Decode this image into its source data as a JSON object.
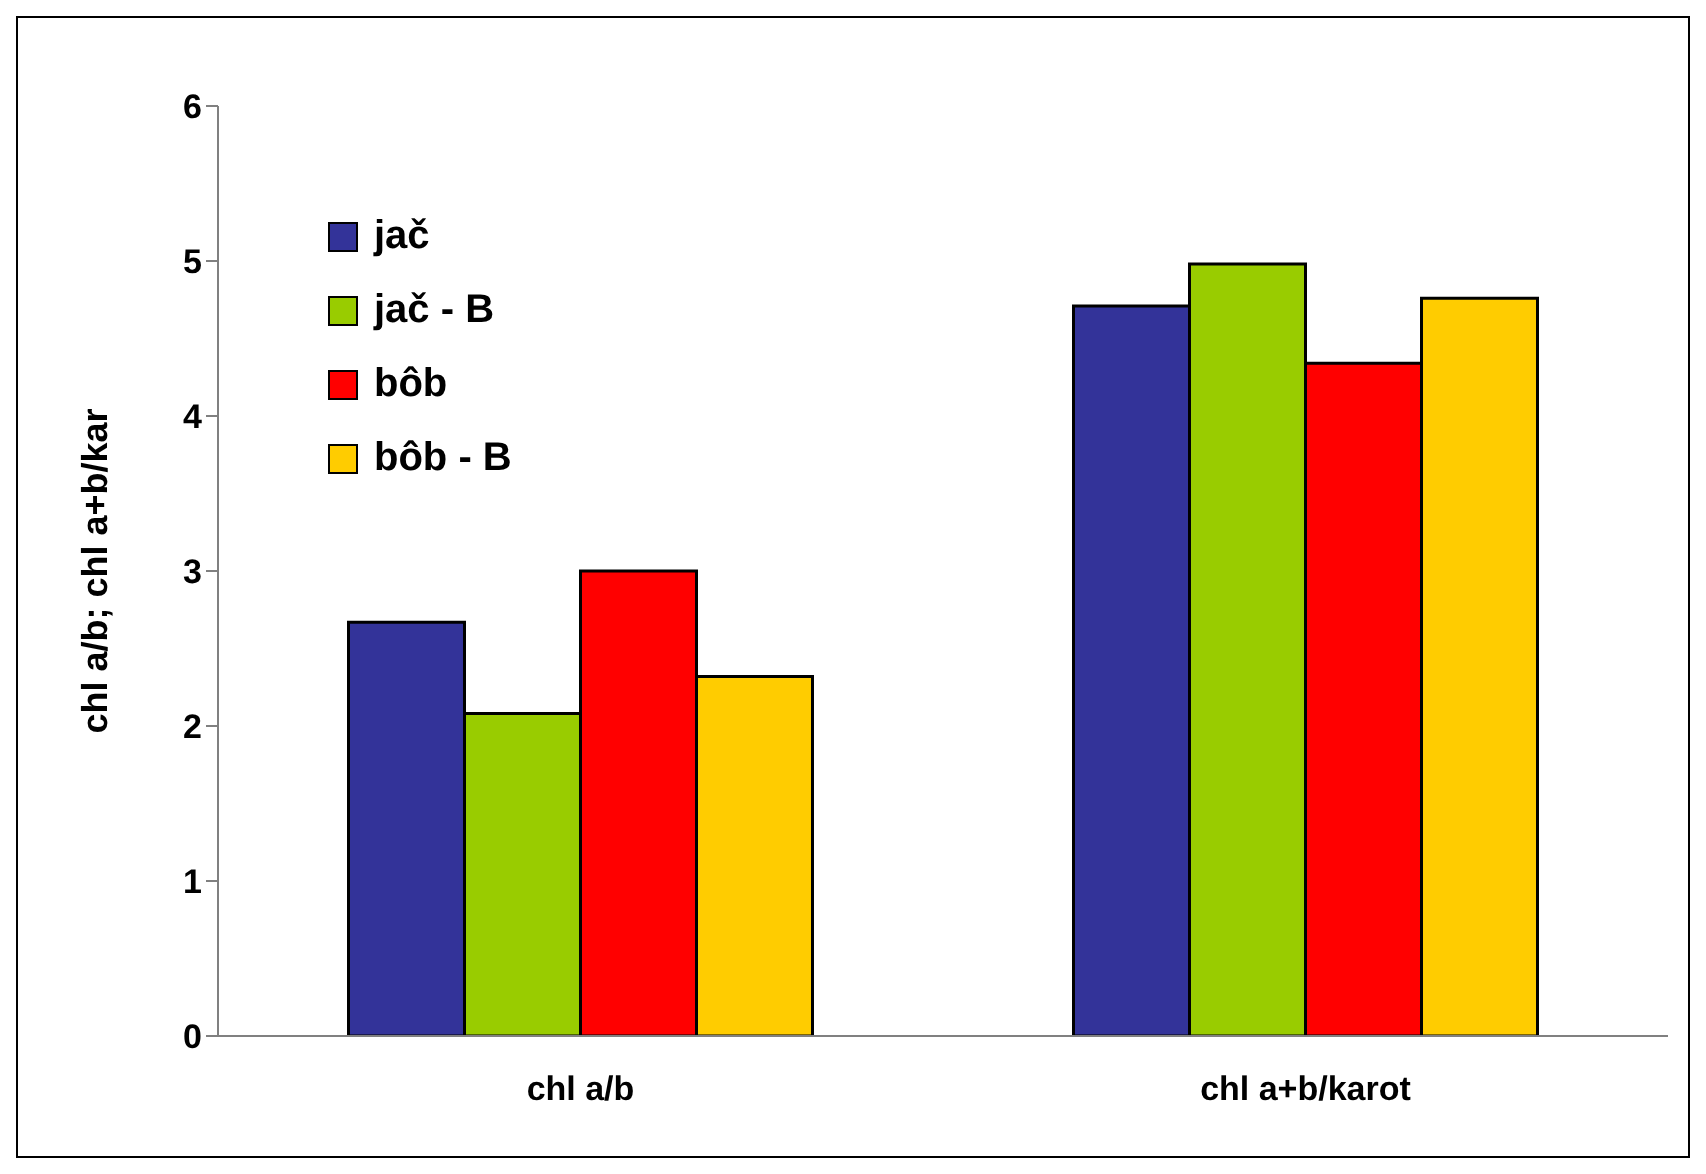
{
  "chart_data": {
    "type": "bar",
    "ylabel": "chl a/b; chl a+b/kar",
    "categories": [
      "chl a/b",
      "chl a+b/karot"
    ],
    "series": [
      {
        "name": "jač",
        "color": "#333399",
        "values": [
          2.67,
          4.71
        ]
      },
      {
        "name": "jač - B",
        "color": "#99cc00",
        "values": [
          2.08,
          4.98
        ]
      },
      {
        "name": "bôb",
        "color": "#ff0000",
        "values": [
          3.0,
          4.34
        ]
      },
      {
        "name": "bôb - B",
        "color": "#ffcc00",
        "values": [
          2.32,
          4.76
        ]
      }
    ],
    "ylim": [
      0,
      6
    ],
    "yticks": [
      0,
      1,
      2,
      3,
      4,
      5,
      6
    ],
    "grid": false,
    "legend": "top left"
  }
}
